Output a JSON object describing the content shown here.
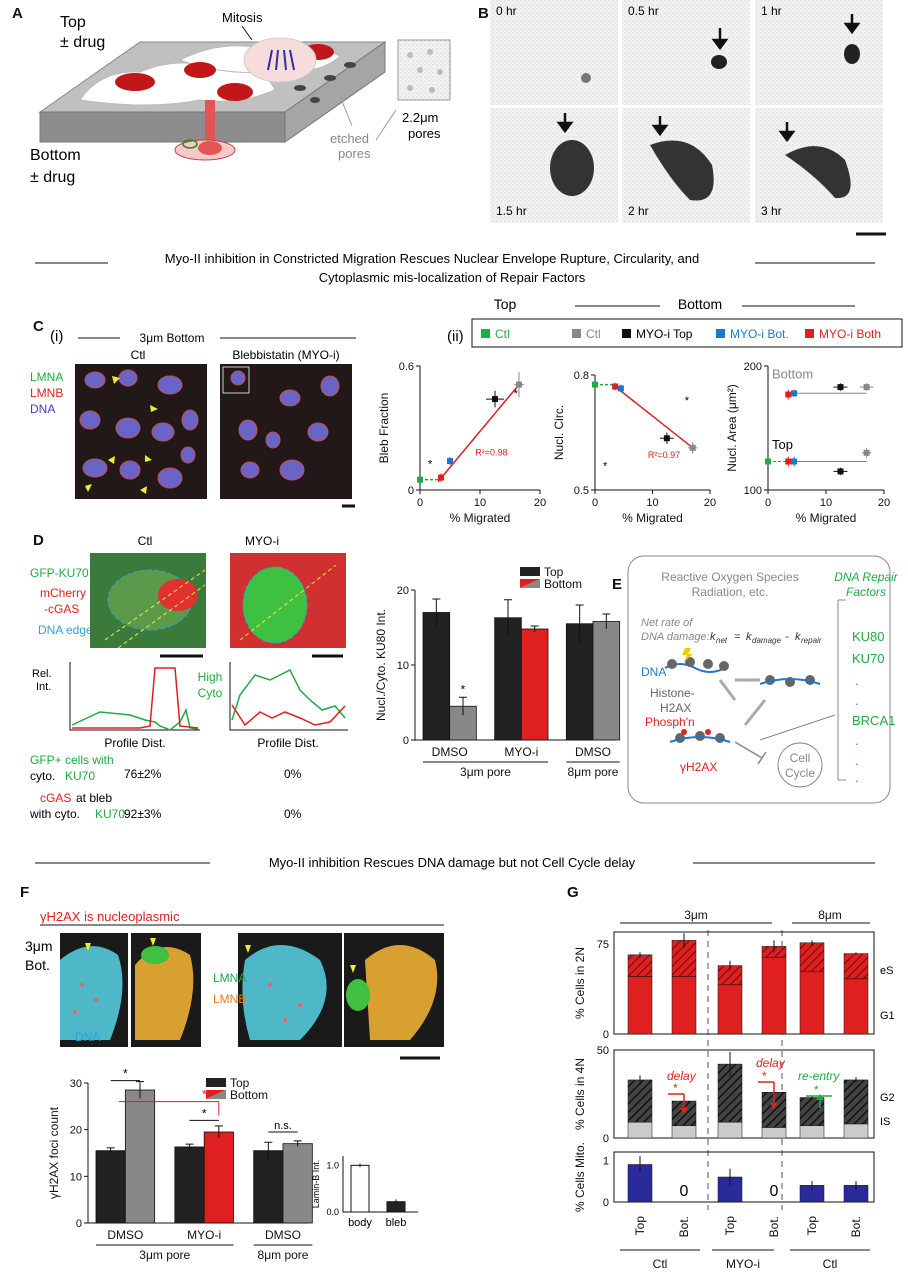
{
  "panels": {
    "A": {
      "letter": "A",
      "top": "Top",
      "top_drug": "± drug",
      "bottom": "Bottom",
      "bottom_drug": "± drug",
      "mitosis": "Mitosis",
      "etched1": "etched",
      "etched2": "pores",
      "pores1": "2.2μm",
      "pores2": "pores"
    },
    "B": {
      "letter": "B",
      "times": [
        "0 hr",
        "0.5 hr",
        "1 hr",
        "1.5 hr",
        "2 hr",
        "3 hr"
      ]
    },
    "section1": {
      "line1": "Myo-II inhibition in Constricted Migration Rescues Nuclear Envelope Rupture, Circularity, and",
      "line2": "Cytoplasmic mis-localization of Repair Factors"
    },
    "C": {
      "letter": "C",
      "sub_i": "(i)",
      "sub_ii": "(ii)",
      "header": "3μm Bottom",
      "ctl": "Ctl",
      "blebb": "Blebbistatin (MYO-i)",
      "lmna": "LMNA",
      "lmnb": "LMNB",
      "dna": "DNA",
      "legend_top": "Top",
      "legend_bottom": "Bottom",
      "legend": [
        "Ctl",
        "Ctl",
        "MYO-i Top",
        "MYO-i Bot.",
        "MYO-i Both"
      ],
      "legend_colors": [
        "#22aa44",
        "#888888",
        "#111111",
        "#1f77c8",
        "#e02020"
      ]
    },
    "D": {
      "letter": "D",
      "ctl": "Ctl",
      "myoi": "MYO-i",
      "gfp": "GFP-KU70",
      "mch1": "mCherry",
      "mch2": "-cGAS",
      "edge": "DNA edge",
      "rel1": "Rel.",
      "rel2": "Int.",
      "high1": "High",
      "high2": "Cyto",
      "profile": "Profile Dist.",
      "row1a": "GFP+ cells with",
      "row1b": "cyto.",
      "row1c": "KU70",
      "row1_ctl": "76±2%",
      "row1_myo": "0%",
      "row2a": "cGAS",
      "row2b": "at bleb",
      "row2c": "with cyto.",
      "row2d": "KU70",
      "row2_ctl": "92±3%",
      "row2_myo": "0%"
    },
    "E": {
      "letter": "E",
      "ros1": "Reactive Oxygen Species",
      "ros2": "Radiation, etc.",
      "rep1": "DNA Repair",
      "rep2": "Factors",
      "net1": "Net rate of",
      "net2": "DNA damage:",
      "kn": "k",
      "kn_sub": "net",
      "eq": "=",
      "kd": "k",
      "kd_sub": "damage",
      "minus": "-",
      "kr": "k",
      "kr_sub": "repair",
      "dna": "DNA",
      "hist1": "Histone-",
      "hist2": "H2AX",
      "phos": "Phosph'n",
      "gh2ax": "γH2AX",
      "cc1": "Cell",
      "cc2": "Cycle",
      "factors": [
        "KU80",
        "KU70",
        ".",
        ".",
        "BRCA1",
        ".",
        ".",
        "."
      ]
    },
    "section2": {
      "line": "Myo-II inhibition Rescues DNA damage but not Cell Cycle delay"
    },
    "F": {
      "letter": "F",
      "header": "γH2AX is nucleoplasmic",
      "bot1": "3μm",
      "bot2": "Bot.",
      "lmna": "LMNA",
      "lmnb": "LMNB",
      "dna": "DNA",
      "sig1": "*",
      "sig2": "*",
      "sig3": "*",
      "ns": "n.s."
    },
    "G": {
      "letter": "G",
      "h3": "3μm",
      "h8": "8μm",
      "es": "eS",
      "g1": "G1",
      "g2": "G2",
      "is": "IS",
      "delay": "delay",
      "reentry": "re-entry",
      "star": "*",
      "zero": "0",
      "xticks": [
        "Top",
        "Bot.",
        "Top",
        "Bot.",
        "Top",
        "Bot."
      ],
      "groups": [
        "Ctl",
        "MYO-i",
        "Ctl"
      ]
    }
  },
  "chart_data": [
    {
      "id": "C-bleb",
      "type": "scatter",
      "xlabel": "% Migrated",
      "ylabel": "Bleb Fraction",
      "xlim": [
        0,
        20
      ],
      "ylim": [
        0,
        0.6
      ],
      "xticks": [
        0,
        10,
        20
      ],
      "yticks": [
        0,
        0.6
      ],
      "fit_label": "R²=0.98",
      "fit": [
        [
          3,
          0.04
        ],
        [
          16.5,
          0.51
        ]
      ],
      "points": [
        {
          "x": 0,
          "y": 0.05,
          "xerr": 0,
          "yerr": 0,
          "color": "#22aa44"
        },
        {
          "x": 3.5,
          "y": 0.06,
          "xerr": 0.5,
          "yerr": 0.02,
          "color": "#e02020"
        },
        {
          "x": 5,
          "y": 0.14,
          "xerr": 0.5,
          "yerr": 0.02,
          "color": "#1f77c8"
        },
        {
          "x": 12.5,
          "y": 0.44,
          "xerr": 1.5,
          "yerr": 0.04,
          "color": "#111111"
        },
        {
          "x": 16.5,
          "y": 0.51,
          "xerr": 0.8,
          "yerr": 0.06,
          "color": "#888888"
        }
      ],
      "stars": [
        "*",
        "*"
      ]
    },
    {
      "id": "C-circ",
      "type": "scatter",
      "xlabel": "% Migrated",
      "ylabel": "Nucl. Circ.",
      "xlim": [
        0,
        20
      ],
      "ylim": [
        0.5,
        0.8
      ],
      "xticks": [
        0,
        10,
        20
      ],
      "yticks": [
        0.5,
        0.8
      ],
      "fit_label": "R²=0.97",
      "fit": [
        [
          3.5,
          0.77
        ],
        [
          17,
          0.61
        ]
      ],
      "points": [
        {
          "x": 0,
          "y": 0.775,
          "xerr": 0,
          "yerr": 0,
          "color": "#22aa44"
        },
        {
          "x": 3.5,
          "y": 0.77,
          "xerr": 0.5,
          "yerr": 0.01,
          "color": "#e02020"
        },
        {
          "x": 4.5,
          "y": 0.765,
          "xerr": 0.5,
          "yerr": 0.01,
          "color": "#1f77c8"
        },
        {
          "x": 12.5,
          "y": 0.635,
          "xerr": 1.2,
          "yerr": 0.015,
          "color": "#111111"
        },
        {
          "x": 17,
          "y": 0.61,
          "xerr": 0.8,
          "yerr": 0.015,
          "color": "#888888"
        }
      ],
      "stars": [
        "*",
        "*"
      ]
    },
    {
      "id": "C-area",
      "type": "scatter",
      "xlabel": "% Migrated",
      "ylabel": "Nucl. Area (μm²)",
      "xlim": [
        0,
        20
      ],
      "ylim": [
        100,
        200
      ],
      "xticks": [
        0,
        10,
        20
      ],
      "yticks": [
        100,
        200
      ],
      "series_labels": [
        "Bottom",
        "Top"
      ],
      "ref_lines": [
        [
          3.5,
          178
        ],
        [
          3.5,
          123
        ]
      ],
      "points": [
        {
          "x": 3.5,
          "y": 177,
          "xerr": 0.5,
          "yerr": 4,
          "color": "#e02020"
        },
        {
          "x": 4.5,
          "y": 178,
          "xerr": 0.5,
          "yerr": 3,
          "color": "#1f77c8"
        },
        {
          "x": 12.5,
          "y": 183,
          "xerr": 1.2,
          "yerr": 3,
          "color": "#111111"
        },
        {
          "x": 17,
          "y": 183,
          "xerr": 1.2,
          "yerr": 3,
          "color": "#888888"
        },
        {
          "x": 0,
          "y": 123,
          "xerr": 0,
          "yerr": 0,
          "color": "#22aa44"
        },
        {
          "x": 3.5,
          "y": 123,
          "xerr": 0.5,
          "yerr": 4,
          "color": "#e02020"
        },
        {
          "x": 4.5,
          "y": 123,
          "xerr": 0.5,
          "yerr": 4,
          "color": "#1f77c8"
        },
        {
          "x": 12.5,
          "y": 115,
          "xerr": 1.2,
          "yerr": 3,
          "color": "#111111"
        },
        {
          "x": 17,
          "y": 130,
          "xerr": 0.8,
          "yerr": 4,
          "color": "#888888"
        }
      ]
    },
    {
      "id": "D-bars",
      "type": "bar",
      "ylabel": "Nucl./Cyto. KU80 Int.",
      "ylim": [
        0,
        20
      ],
      "yticks": [
        0,
        10,
        20
      ],
      "legend": [
        "Top",
        "Bottom"
      ],
      "categories": [
        "DMSO",
        "MYO-i",
        "DMSO"
      ],
      "sublabels": [
        "3μm pore",
        "8μm pore"
      ],
      "bars": [
        {
          "value": 17,
          "err": 1.8,
          "color": "#222222"
        },
        {
          "value": 4.5,
          "err": 1.2,
          "color": "#888888",
          "star": "*"
        },
        {
          "value": 16.3,
          "err": 2.4,
          "color": "#222222"
        },
        {
          "value": 14.8,
          "err": 0.4,
          "color": "#e02020"
        },
        {
          "value": 15.5,
          "err": 2.5,
          "color": "#222222"
        },
        {
          "value": 15.8,
          "err": 1.0,
          "color": "#888888"
        }
      ]
    },
    {
      "id": "F-bars",
      "type": "bar",
      "ylabel": "γH2AX foci count",
      "ylim": [
        0,
        30
      ],
      "yticks": [
        0,
        10,
        20,
        30
      ],
      "legend": [
        "Top",
        "Bottom"
      ],
      "categories": [
        "DMSO",
        "MYO-i",
        "DMSO"
      ],
      "sublabels": [
        "3μm pore",
        "8μm pore"
      ],
      "bars": [
        {
          "value": 15.5,
          "err": 0.6,
          "color": "#222222"
        },
        {
          "value": 28.5,
          "err": 1.8,
          "color": "#888888"
        },
        {
          "value": 16.3,
          "err": 0.6,
          "color": "#222222"
        },
        {
          "value": 19.5,
          "err": 1.3,
          "color": "#e02020"
        },
        {
          "value": 15.5,
          "err": 1.8,
          "color": "#222222"
        },
        {
          "value": 17,
          "err": 0.6,
          "color": "#888888"
        }
      ]
    },
    {
      "id": "F-lamin",
      "type": "bar",
      "ylabel": "Lamin-B Int.",
      "ylim": [
        0,
        1.2
      ],
      "yticks": [
        0,
        1.0
      ],
      "categories": [
        "body",
        "bleb"
      ],
      "bars": [
        {
          "value": 1.0,
          "err": 0.04,
          "color": "#ffffff"
        },
        {
          "value": 0.22,
          "err": 0.05,
          "color": "#222222"
        }
      ]
    },
    {
      "id": "G-2N",
      "type": "bar",
      "ylabel": "% Cells in 2N",
      "ylim": [
        0,
        85
      ],
      "yticks": [
        0,
        75
      ],
      "stack": [
        "G1",
        "eS"
      ],
      "bars": [
        {
          "g1": 48,
          "total": 66,
          "err": 2,
          "color": "#e02020"
        },
        {
          "g1": 48,
          "total": 78,
          "err": 6,
          "color": "#e02020"
        },
        {
          "g1": 41,
          "total": 57,
          "err": 4,
          "color": "#e02020"
        },
        {
          "g1": 64,
          "total": 73,
          "err": 5,
          "color": "#e02020"
        },
        {
          "g1": 52,
          "total": 76,
          "err": 2,
          "color": "#e02020"
        },
        {
          "g1": 46,
          "total": 67,
          "err": 1,
          "color": "#e02020"
        }
      ]
    },
    {
      "id": "G-4N",
      "type": "bar",
      "ylabel": "% Cells in 4N",
      "ylim": [
        0,
        50
      ],
      "yticks": [
        0,
        50
      ],
      "stack": [
        "IS",
        "G2"
      ],
      "bars": [
        {
          "is": 9,
          "total": 33,
          "err": 2.5
        },
        {
          "is": 7,
          "total": 21,
          "err": 2
        },
        {
          "is": 9,
          "total": 42,
          "err": 7
        },
        {
          "is": 6,
          "total": 26,
          "err": 5
        },
        {
          "is": 7,
          "total": 23,
          "err": 1
        },
        {
          "is": 8,
          "total": 33,
          "err": 1.5
        }
      ]
    },
    {
      "id": "G-mito",
      "type": "bar",
      "ylabel": "% Cells Mito.",
      "ylim": [
        0,
        1.2
      ],
      "yticks": [
        0,
        1
      ],
      "bars": [
        {
          "value": 0.9,
          "err": 0.2
        },
        {
          "value": 0
        },
        {
          "value": 0.6,
          "err": 0.2
        },
        {
          "value": 0
        },
        {
          "value": 0.4,
          "err": 0.1
        },
        {
          "value": 0.4,
          "err": 0.1
        }
      ]
    }
  ]
}
